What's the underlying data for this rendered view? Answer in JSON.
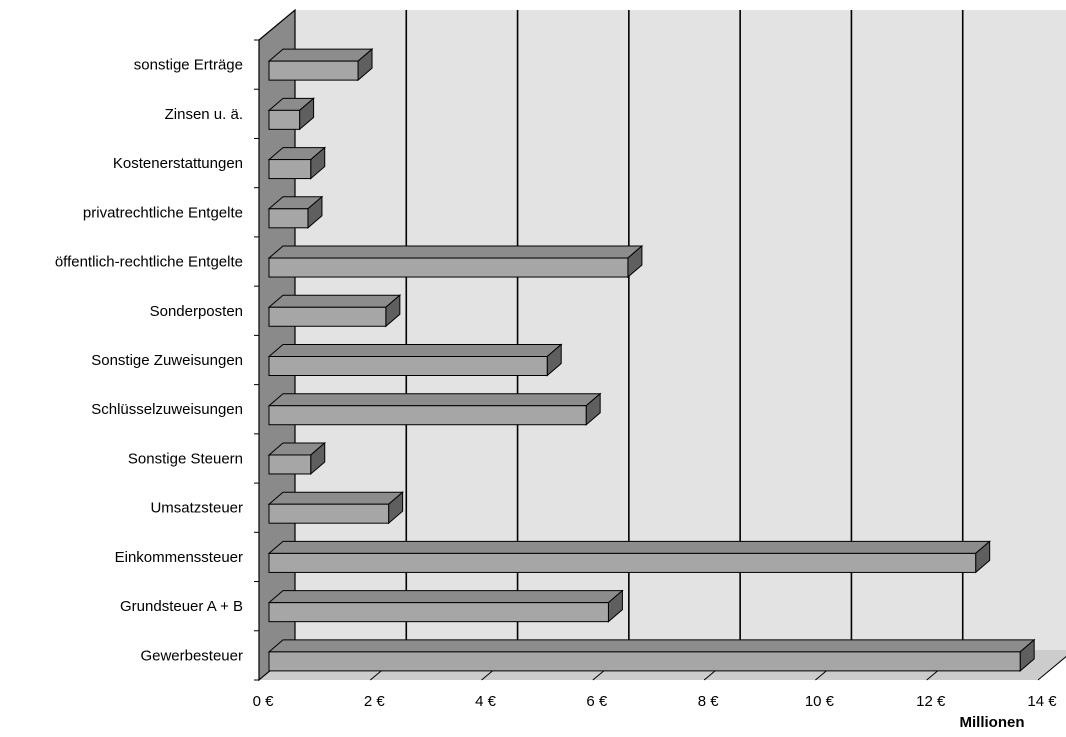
{
  "chart_data": {
    "type": "bar",
    "orientation": "horizontal",
    "three_d": true,
    "categories": [
      "sonstige Erträge",
      "Zinsen u. ä.",
      "Kostenerstattungen",
      "privatrechtliche Entgelte",
      "öffentlich-rechtliche Entgelte",
      "Sonderposten",
      "Sonstige Zuweisungen",
      "Schlüsselzuweisungen",
      "Sonstige Steuern",
      "Umsatzsteuer",
      "Einkommenssteuer",
      "Grundsteuer A + B",
      "Gewerbesteuer"
    ],
    "values": [
      1.6,
      0.55,
      0.75,
      0.7,
      6.45,
      2.1,
      5.0,
      5.7,
      0.75,
      2.15,
      12.7,
      6.1,
      13.5
    ],
    "xlim": [
      0,
      14
    ],
    "x_ticks": [
      0,
      2,
      4,
      6,
      8,
      10,
      12,
      14
    ],
    "x_tick_labels": [
      "0 €",
      "2 €",
      "4 €",
      "6 €",
      "8 €",
      "10 €",
      "12 €",
      "14 €"
    ],
    "x_unit_label": "Millionen",
    "grid": true,
    "legend": "none",
    "colors": {
      "bar_front": "#a6a6a6",
      "bar_top": "#8c8c8c",
      "bar_side": "#5f5f5f",
      "back_wall": "#e3e3e3",
      "left_wall": "#8a8a8a",
      "floor": "#cccccc",
      "grid_line": "#000000"
    }
  }
}
